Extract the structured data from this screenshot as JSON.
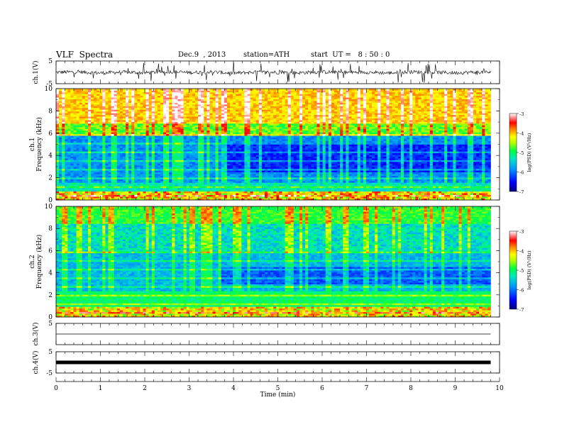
{
  "header": {
    "title": "VLF  Spectra",
    "date": "Dec.9  , 2013",
    "station": "station=ATH",
    "start": "start  UT =   8 : 50 : 0"
  },
  "chart_data": [
    {
      "type": "line",
      "panel": "ch1-waveform",
      "ylabel": "ch.1(V)",
      "ylim": [
        -5,
        5
      ],
      "yticks": [
        "5",
        "-5"
      ],
      "x": [
        0,
        0.5,
        1,
        1.5,
        2,
        2.5,
        3,
        3.5,
        4,
        4.5,
        5,
        5.5,
        6,
        6.5,
        7,
        7.5,
        8,
        8.5,
        9,
        9.5,
        9.8
      ],
      "values": [
        0.0,
        0.2,
        -0.3,
        0.1,
        -0.2,
        0.3,
        -0.1,
        0.2,
        -0.4,
        0.1,
        0.0,
        -0.2,
        0.2,
        -0.1,
        0.1,
        -0.3,
        0.2,
        0.0,
        -0.2,
        0.1,
        0.0
      ]
    },
    {
      "type": "heatmap",
      "panel": "ch1-spectrogram",
      "ylabel": "ch.1\nFrequency (kHz)",
      "ylim": [
        0,
        10
      ],
      "yticks": [
        "0",
        "2",
        "4",
        "6",
        "8",
        "10"
      ],
      "colorbar": {
        "label": "log(PSD) (V²/Hz)",
        "range": [
          -7,
          -3
        ],
        "ticks": [
          "-3",
          "-4",
          "-5",
          "-6",
          "-7"
        ]
      }
    },
    {
      "type": "heatmap",
      "panel": "ch2-spectrogram",
      "ylabel": "ch.2\nFrequency (kHz)",
      "ylim": [
        0,
        10
      ],
      "yticks": [
        "0",
        "2",
        "4",
        "6",
        "8",
        "10"
      ],
      "colorbar": {
        "label": "log(PSD) (V²/Hz)",
        "range": [
          -7,
          -3
        ],
        "ticks": [
          "-3",
          "-4",
          "-5",
          "-6",
          "-7"
        ]
      }
    },
    {
      "type": "line",
      "panel": "ch3-waveform",
      "ylabel": "ch.3(V)",
      "ylim": [
        -5,
        5
      ],
      "yticks": [
        "5"
      ],
      "x": [
        0,
        9.8
      ],
      "values": [
        0,
        0
      ]
    },
    {
      "type": "line",
      "panel": "ch4-waveform",
      "ylabel": "ch.4(V)",
      "ylim": [
        -5,
        5
      ],
      "yticks": [
        "5",
        "-5"
      ],
      "x": [
        0,
        9.8
      ],
      "values": [
        0,
        0
      ]
    }
  ],
  "xaxis": {
    "label": "Time  (min)",
    "xlim": [
      0,
      10
    ],
    "ticks": [
      "0",
      "1",
      "2",
      "3",
      "4",
      "5",
      "6",
      "7",
      "8",
      "9",
      "10"
    ]
  },
  "colors": {
    "colormap": [
      "#00007a",
      "#0000ff",
      "#0080ff",
      "#00e0e0",
      "#00ff80",
      "#80ff00",
      "#ffff00",
      "#ff8000",
      "#ff0000",
      "#ffffff"
    ]
  }
}
